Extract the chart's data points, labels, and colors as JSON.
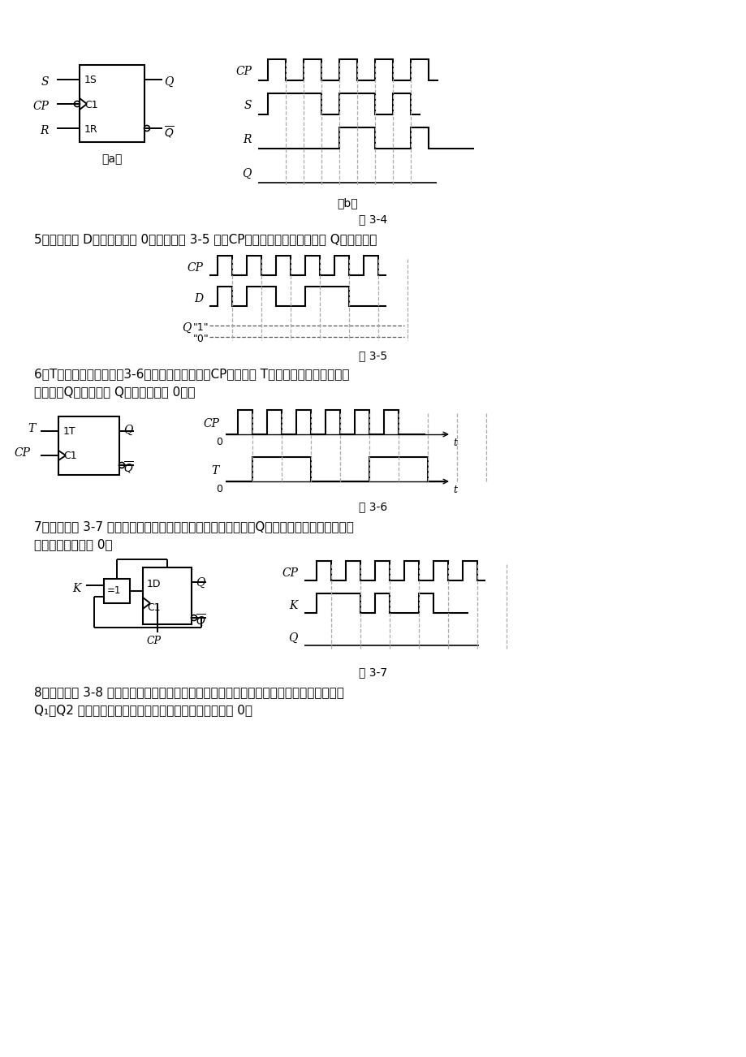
{
  "bg_color": "#ffffff",
  "fig4_caption": "图 3-4",
  "fig5_caption": "图 3-5",
  "fig6_caption": "图 3-6",
  "fig7_caption": "图 3-7",
  "prob5_text": "5．设正边沿 D触发器初态为 0，试画出图 3-5 所示CP和输入信号作用下触发器 Q端的波形。",
  "prob6_text1": "6．T触发器逻辑符号如图3-6所示，当其脉冲输入CP波形以及 T端输入波形如图所示，试",
  "prob6_text2": "画出输出Q端波形（设 Q端初始状态为 0）。",
  "prob7_text1": "7．电路如图 3-7 所示，请画出在输入信号作用下，对应的输出Q的波形。（设触发器为边沿",
  "prob7_text2": "触发器，且初态为 0）",
  "prob8_text1": "8．电路如图 3-8 所示，请写出各触发器次态方程，并画出在输入信号作用下，对应的输出",
  "prob8_text2": "Q₁、Q2 的波形。（设触发器均为边沿触发器，且初态为 0）",
  "label_a": "（a）",
  "label_b": "（b）"
}
